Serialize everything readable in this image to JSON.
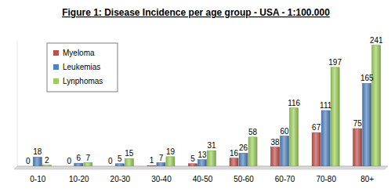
{
  "chart_data": {
    "type": "bar",
    "title": "Figure 1: Disease Incidence per age group - USA - 1:100.000",
    "categories": [
      "0-10",
      "10-20",
      "20-30",
      "30-40",
      "40-50",
      "50-60",
      "60-70",
      "70-80",
      "80+"
    ],
    "series": [
      {
        "name": "Myeloma",
        "color": "#c0504d",
        "values": [
          0,
          0,
          0,
          1,
          5,
          16,
          38,
          67,
          75
        ]
      },
      {
        "name": "Leukemias",
        "color": "#4f81bd",
        "values": [
          18,
          6,
          5,
          7,
          13,
          26,
          60,
          111,
          165
        ]
      },
      {
        "name": "Lynphomas",
        "color": "#9bcf5a",
        "values": [
          2,
          7,
          15,
          19,
          31,
          58,
          116,
          197,
          241
        ]
      }
    ],
    "ylim": [
      0,
      250
    ],
    "grid": false,
    "legend": "upper left",
    "data_labels": true,
    "tick_labels": "x"
  }
}
